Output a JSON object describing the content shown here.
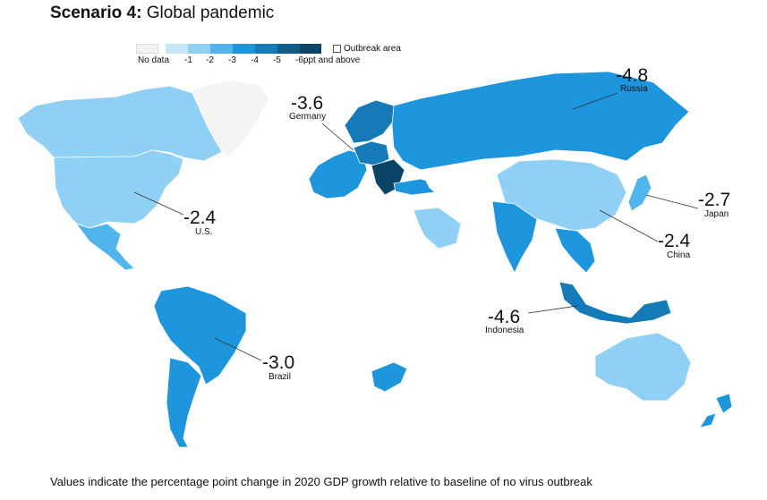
{
  "title": {
    "bold": "Scenario 4:",
    "rest": " Global pandemic"
  },
  "legend": {
    "no_data": "No data",
    "steps": [
      "-1",
      "-2",
      "-3",
      "-4",
      "-5",
      "-6ppt and above"
    ],
    "outbreak": "Outbreak area",
    "colors": [
      "#f2f2f2",
      "#c6e6f8",
      "#8fd0f4",
      "#4fb5ec",
      "#1e96dd",
      "#157ab8",
      "#0e5c89",
      "#0a4466"
    ]
  },
  "callouts": [
    {
      "value": "-4.8",
      "country": "Russia"
    },
    {
      "value": "-3.6",
      "country": "Germany"
    },
    {
      "value": "-2.4",
      "country": "U.S."
    },
    {
      "value": "-2.7",
      "country": "Japan"
    },
    {
      "value": "-2.4",
      "country": "China"
    },
    {
      "value": "-4.6",
      "country": "Indonesia"
    },
    {
      "value": "-3.0",
      "country": "Brazil"
    }
  ],
  "footer": "Values indicate the percentage point change in 2020 GDP growth relative to baseline of no virus outbreak"
}
